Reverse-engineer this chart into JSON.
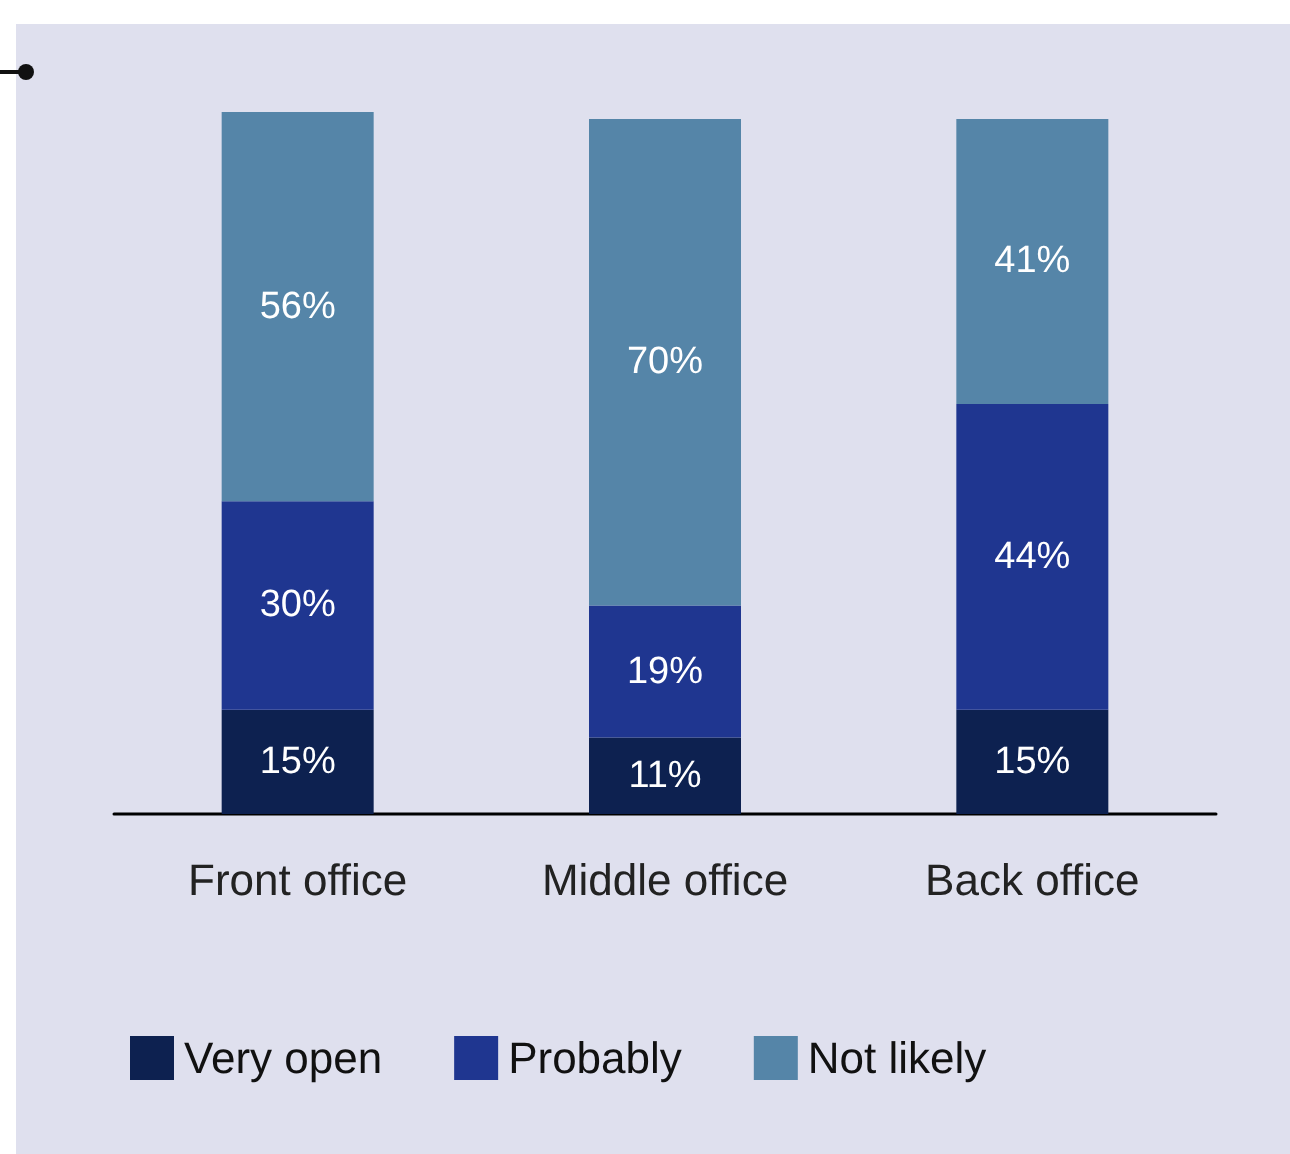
{
  "chart_data": {
    "type": "bar",
    "stacked": true,
    "legend": "bottom",
    "categories": [
      "Front office",
      "Middle office",
      "Back office"
    ],
    "series": [
      {
        "name": "Very open",
        "color": "#0d2150",
        "values": [
          15,
          11,
          15
        ],
        "value_labels": [
          "15%",
          "11%",
          "15%"
        ]
      },
      {
        "name": "Probably",
        "color": "#1f3690",
        "values": [
          30,
          19,
          44
        ],
        "value_labels": [
          "30%",
          "19%",
          "44%"
        ]
      },
      {
        "name": "Not likely",
        "color": "#5585a8",
        "values": [
          56,
          70,
          41
        ],
        "value_labels": [
          "56%",
          "70%",
          "41%"
        ]
      }
    ]
  }
}
